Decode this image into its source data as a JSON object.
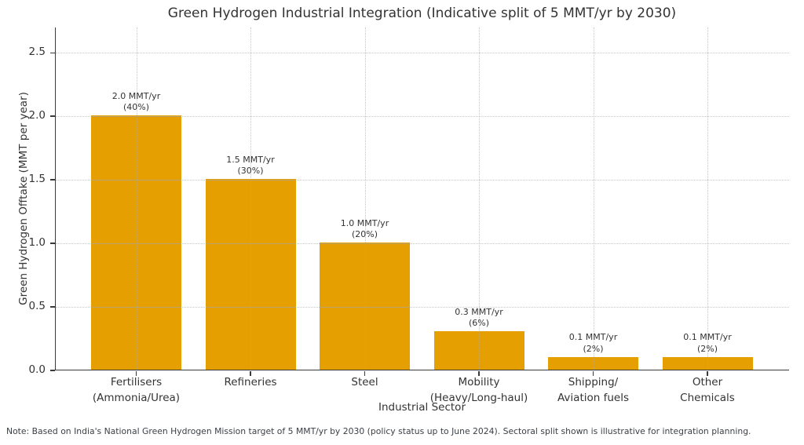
{
  "chart_data": {
    "type": "bar",
    "title": "Green Hydrogen Industrial Integration (Indicative split of 5 MMT/yr by 2030)",
    "xlabel": "Industrial Sector",
    "ylabel": "Green Hydrogen Offtake (MMT per year)",
    "categories": [
      "Fertilisers\n(Ammonia/Urea)",
      "Refineries",
      "Steel",
      "Mobility\n(Heavy/Long-haul)",
      "Shipping/\nAviation fuels",
      "Other\nChemicals"
    ],
    "values": [
      2.0,
      1.5,
      1.0,
      0.3,
      0.1,
      0.1
    ],
    "percent_share": [
      "40%",
      "30%",
      "20%",
      "6%",
      "2%",
      "2%"
    ],
    "bar_labels": [
      [
        "2.0 MMT/yr",
        "(40%)"
      ],
      [
        "1.5 MMT/yr",
        "(30%)"
      ],
      [
        "1.0 MMT/yr",
        "(20%)"
      ],
      [
        "0.3 MMT/yr",
        "(6%)"
      ],
      [
        "0.1 MMT/yr",
        "(2%)"
      ],
      [
        "0.1 MMT/yr",
        "(2%)"
      ]
    ],
    "ylim": [
      0,
      2.7
    ],
    "yticks": [
      0,
      0.5,
      1,
      1.5,
      2,
      2.5
    ],
    "ytick_labels": [
      "0.0",
      "0.5",
      "1.0",
      "1.5",
      "2.0",
      "2.5"
    ],
    "bar_color": "#E69F00",
    "grid": {
      "style": "dotted",
      "axes": "both",
      "color": "#aaaaaa"
    },
    "legend": "none",
    "note": "Note: Based on India's National Green Hydrogen Mission target of 5 MMT/yr by 2030 (policy status up to June 2024). Sectoral split shown is illustrative for integration planning."
  }
}
